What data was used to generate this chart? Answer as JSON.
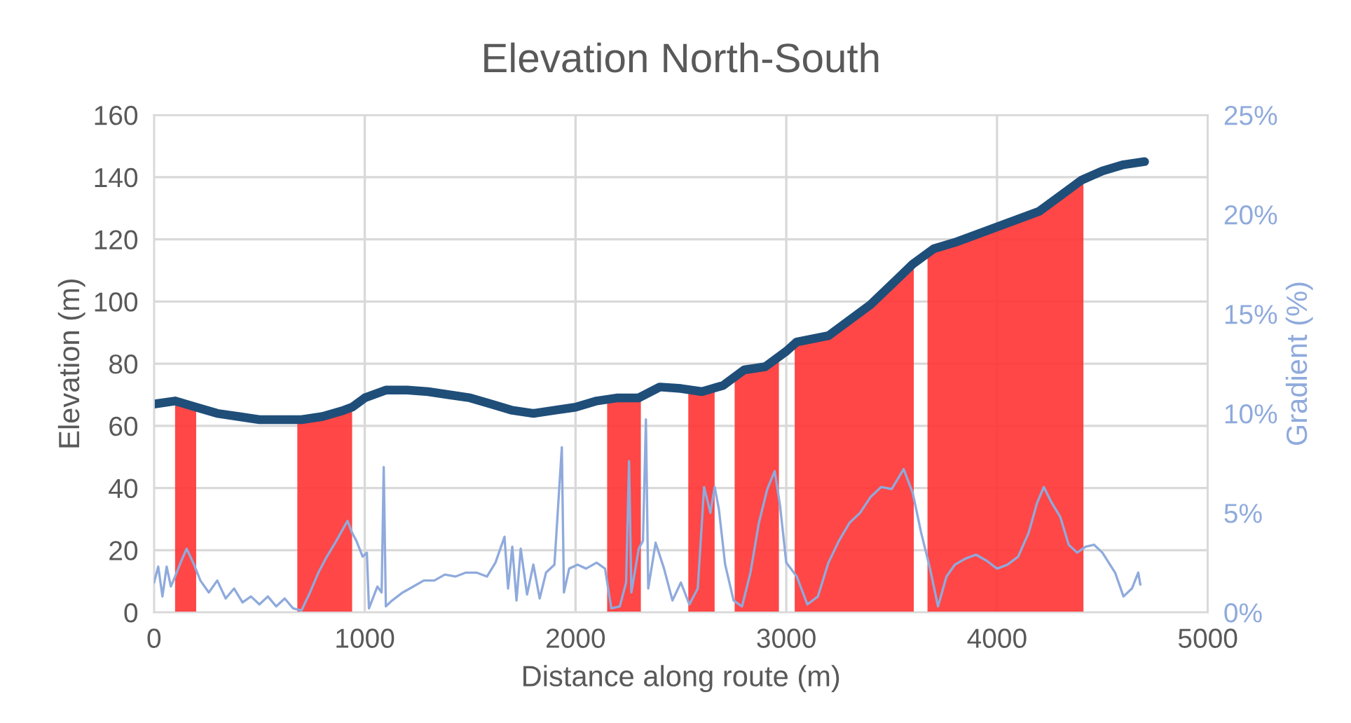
{
  "chart_data": {
    "type": "line",
    "title": "Elevation North-South",
    "xlabel": "Distance along route (m)",
    "ylabel": "Elevation (m)",
    "y2label": "Gradient (%)",
    "xlim": [
      0,
      5000
    ],
    "xticks": [
      0,
      1000,
      2000,
      3000,
      4000,
      5000
    ],
    "ylim": [
      0,
      160
    ],
    "yticks": [
      0,
      20,
      40,
      60,
      80,
      100,
      120,
      140,
      160
    ],
    "y2lim": [
      0,
      25
    ],
    "y2ticks": [
      {
        "value": 0,
        "label": "0%"
      },
      {
        "value": 5,
        "label": "5%"
      },
      {
        "value": 10,
        "label": "10%"
      },
      {
        "value": 15,
        "label": "15%"
      },
      {
        "value": 20,
        "label": "20%"
      },
      {
        "value": 25,
        "label": "25%"
      }
    ],
    "grid": true,
    "legend": false,
    "marker": "none",
    "line_style": "solid",
    "series": [
      {
        "axis": "y2",
        "color": "#8faadc",
        "x": [
          0,
          20,
          40,
          60,
          80,
          100,
          130,
          155,
          190,
          220,
          260,
          300,
          340,
          380,
          420,
          460,
          500,
          540,
          580,
          620,
          660,
          700,
          740,
          780,
          820,
          860,
          918,
          940,
          960,
          990,
          1010,
          1020,
          1060,
          1080,
          1090,
          1100,
          1130,
          1180,
          1230,
          1280,
          1330,
          1380,
          1430,
          1480,
          1530,
          1580,
          1620,
          1663,
          1680,
          1700,
          1720,
          1740,
          1770,
          1800,
          1830,
          1860,
          1900,
          1935,
          1945,
          1970,
          2010,
          2050,
          2100,
          2140,
          2170,
          2210,
          2240,
          2254,
          2265,
          2300,
          2320,
          2334,
          2345,
          2380,
          2420,
          2460,
          2500,
          2540,
          2580,
          2610,
          2640,
          2660,
          2680,
          2710,
          2750,
          2790,
          2830,
          2870,
          2910,
          2945,
          2970,
          3000,
          3050,
          3100,
          3150,
          3200,
          3250,
          3300,
          3350,
          3400,
          3450,
          3500,
          3557,
          3600,
          3640,
          3680,
          3720,
          3760,
          3800,
          3850,
          3900,
          3950,
          4000,
          4050,
          4100,
          4150,
          4190,
          4222,
          4260,
          4300,
          4340,
          4380,
          4420,
          4460,
          4500,
          4560,
          4600,
          4640,
          4670,
          4680
        ],
        "values": [
          1.5,
          2.3,
          0.8,
          2.3,
          1.3,
          1.8,
          2.6,
          3.2,
          2.4,
          1.6,
          1.0,
          1.6,
          0.7,
          1.2,
          0.5,
          0.8,
          0.4,
          0.8,
          0.3,
          0.7,
          0.2,
          0.1,
          1.0,
          2.0,
          2.8,
          3.5,
          4.6,
          4.0,
          3.6,
          2.8,
          3.0,
          0.2,
          1.3,
          1.0,
          7.3,
          0.3,
          0.6,
          1.0,
          1.3,
          1.6,
          1.6,
          1.9,
          1.8,
          2.0,
          2.0,
          1.8,
          2.5,
          3.8,
          1.2,
          3.3,
          0.6,
          3.2,
          0.9,
          2.4,
          0.7,
          2.0,
          2.4,
          8.3,
          1.0,
          2.2,
          2.4,
          2.2,
          2.5,
          2.2,
          0.2,
          0.3,
          1.5,
          7.6,
          1.0,
          3.2,
          3.6,
          9.7,
          1.2,
          3.5,
          2.2,
          0.6,
          1.5,
          0.4,
          1.2,
          6.3,
          5.0,
          6.3,
          5.2,
          2.4,
          0.6,
          0.3,
          2.0,
          4.5,
          6.2,
          7.1,
          5.4,
          2.5,
          1.8,
          0.4,
          0.8,
          2.5,
          3.6,
          4.5,
          5.0,
          5.8,
          6.3,
          6.2,
          7.2,
          6.0,
          4.0,
          2.3,
          0.3,
          1.8,
          2.4,
          2.7,
          2.9,
          2.6,
          2.2,
          2.4,
          2.8,
          4.0,
          5.5,
          6.3,
          5.5,
          4.8,
          3.4,
          3.0,
          3.3,
          3.4,
          3.0,
          2.0,
          0.8,
          1.2,
          2.0,
          1.4
        ]
      },
      {
        "type": "area",
        "color": "#ff3333",
        "x": [
          100,
          200,
          240,
          680,
          800,
          940,
          1500,
          2150,
          2310,
          2400,
          2535,
          2660,
          2700,
          2755,
          2850,
          2965,
          3000,
          3040,
          3200,
          3400,
          3605,
          3640,
          3670,
          3800,
          4000,
          4200,
          4410
        ],
        "values": [
          68,
          66,
          null,
          62,
          63,
          66,
          null,
          69,
          69,
          null,
          72,
          71,
          null,
          76,
          79,
          82,
          null,
          87,
          89,
          99,
          112,
          null,
          116,
          119,
          124,
          129,
          139
        ]
      },
      {
        "color": "#1f4e79",
        "x": [
          0,
          100,
          200,
          300,
          400,
          500,
          600,
          700,
          800,
          900,
          940,
          1000,
          1100,
          1200,
          1300,
          1400,
          1500,
          1600,
          1700,
          1750,
          1800,
          1900,
          2000,
          2100,
          2200,
          2300,
          2400,
          2500,
          2600,
          2700,
          2800,
          2900,
          3000,
          3050,
          3200,
          3400,
          3600,
          3700,
          3800,
          4000,
          4200,
          4400,
          4500,
          4600,
          4700
        ],
        "values": [
          67,
          68,
          66,
          64,
          63,
          62,
          62,
          62,
          63,
          65,
          66,
          69,
          71.5,
          71.5,
          71,
          70,
          69,
          67,
          65,
          64.5,
          64,
          65,
          66,
          68,
          69,
          69,
          72.5,
          72,
          71,
          73,
          78,
          79,
          84,
          87,
          89,
          99,
          112,
          117,
          119,
          124,
          129,
          139,
          142,
          144,
          145
        ]
      }
    ]
  }
}
